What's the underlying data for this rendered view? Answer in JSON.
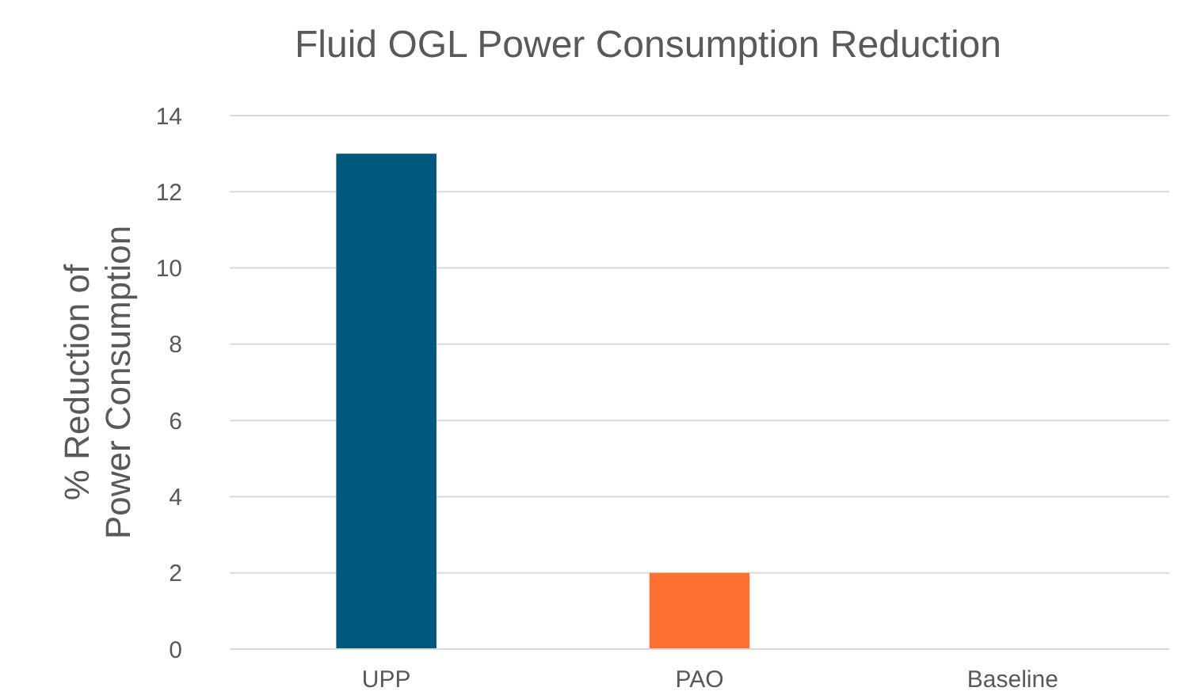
{
  "chart_data": {
    "type": "bar",
    "title": "Fluid OGL Power Consumption Reduction",
    "ylabel": "% Reduction of Power Consumption",
    "categories": [
      "UPP",
      "PAO",
      "Baseline"
    ],
    "values": [
      13,
      2,
      0
    ],
    "colors": [
      "#00587c",
      "#ff6f31",
      "#a5a5a5"
    ],
    "ylim": [
      0,
      14
    ],
    "yticks": [
      0,
      2,
      4,
      6,
      8,
      10,
      12,
      14
    ],
    "grid": "y"
  }
}
